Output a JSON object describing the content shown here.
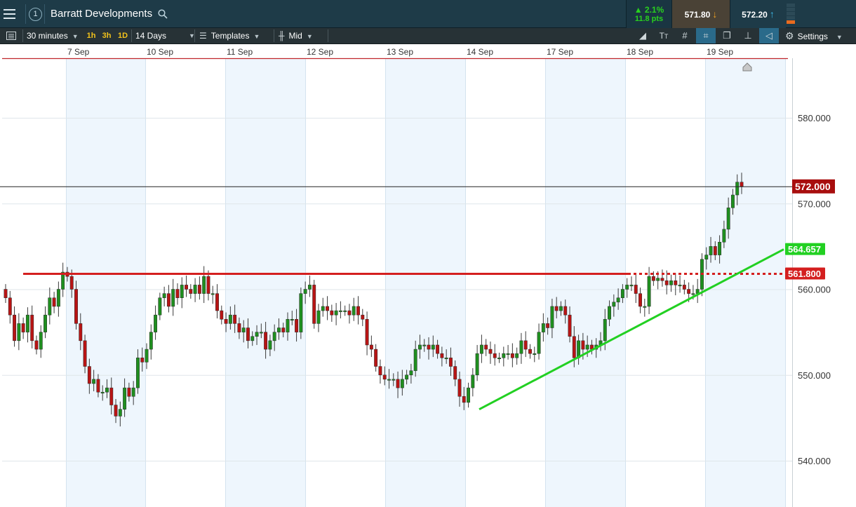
{
  "header": {
    "layout_number": "1",
    "instrument": "Barratt Developments",
    "change_pct": "2.1%",
    "change_pts": "11.8 pts",
    "sell_price": "571.80",
    "buy_price": "572.20",
    "icons": {
      "menu": "hamburger-icon",
      "search": "search-icon",
      "expand": "expand-icon",
      "popout": "popout-icon",
      "close": "close-icon",
      "sell_arrow": "down-arrow-icon",
      "buy_arrow": "up-arrow-icon"
    },
    "colors": {
      "up": "#29d11e",
      "sell_arrow": "#f0a020",
      "buy_arrow": "#3db8e6"
    }
  },
  "toolbar": {
    "interval": "30 minutes",
    "quick_timeframes": [
      "1h",
      "3h",
      "1D"
    ],
    "period": "14 Days",
    "templates": "Templates",
    "price_type": "Mid",
    "settings": "Settings"
  },
  "chart_data": {
    "type": "candlestick",
    "x_labels": [
      "7 Sep",
      "10 Sep",
      "11 Sep",
      "12 Sep",
      "13 Sep",
      "14 Sep",
      "17 Sep",
      "18 Sep",
      "19 Sep"
    ],
    "y_tick_labels": [
      "580.000",
      "570.000",
      "560.000",
      "550.000",
      "540.000"
    ],
    "y_ticks": [
      580,
      570,
      560,
      550,
      540
    ],
    "ylim": [
      535.3,
      585.0
    ],
    "current_price": 572.0,
    "current_price_label": "572.000",
    "resistance_level": 561.8,
    "resistance_label": "561.800",
    "trendline": {
      "start": 546.0,
      "end": 564.657,
      "end_label": "564.657"
    },
    "colors": {
      "up": "#1f8f1f",
      "down": "#b81414",
      "resistance": "#d41f1f",
      "trendline": "#22d022",
      "current": "#a80e0e"
    },
    "closes": [
      559,
      557,
      554,
      556,
      555,
      557,
      554,
      553,
      555,
      557,
      559,
      558,
      560,
      562,
      561.5,
      560,
      556,
      554,
      551,
      549,
      549.5,
      548,
      548,
      548.5,
      546.5,
      545.2,
      546,
      548.5,
      547.5,
      548.5,
      552,
      551.5,
      553,
      555,
      557,
      559,
      559.5,
      558,
      560,
      559,
      560.5,
      560,
      559.5,
      560.5,
      559.5,
      561.5,
      559.5,
      559.5,
      557.5,
      556.5,
      556,
      557,
      556,
      555,
      555.5,
      554,
      554.5,
      555,
      555,
      553,
      554,
      555,
      555.5,
      555,
      556.5,
      556.5,
      555,
      559.5,
      560,
      560.5,
      556,
      557.5,
      558,
      557.5,
      557,
      557.5,
      557.5,
      557.5,
      557,
      558,
      557,
      556.5,
      553.5,
      553,
      551,
      550,
      549.5,
      549.5,
      549.5,
      548.5,
      549.5,
      550,
      550.5,
      553,
      553.5,
      553.5,
      553,
      553.5,
      552.5,
      552,
      552,
      551,
      549.5,
      547.5,
      546.8,
      548.5,
      550,
      552.5,
      553.5,
      553,
      552.5,
      552,
      552,
      552.5,
      552.5,
      552,
      552.5,
      554,
      553,
      552.5,
      552.5,
      555,
      556,
      555.5,
      558,
      557.5,
      558,
      557,
      554.5,
      552,
      554,
      553,
      553.5,
      553,
      553.5,
      554,
      556.5,
      558,
      558.5,
      559,
      560,
      560.5,
      560.5,
      559.5,
      558,
      558,
      561.5,
      561,
      561.3,
      561,
      560.5,
      561,
      560.5,
      560.5,
      560,
      559.5,
      559.5,
      560,
      563.5,
      564,
      565,
      564,
      565.5,
      567,
      569.5,
      571,
      572.5,
      572
    ]
  }
}
